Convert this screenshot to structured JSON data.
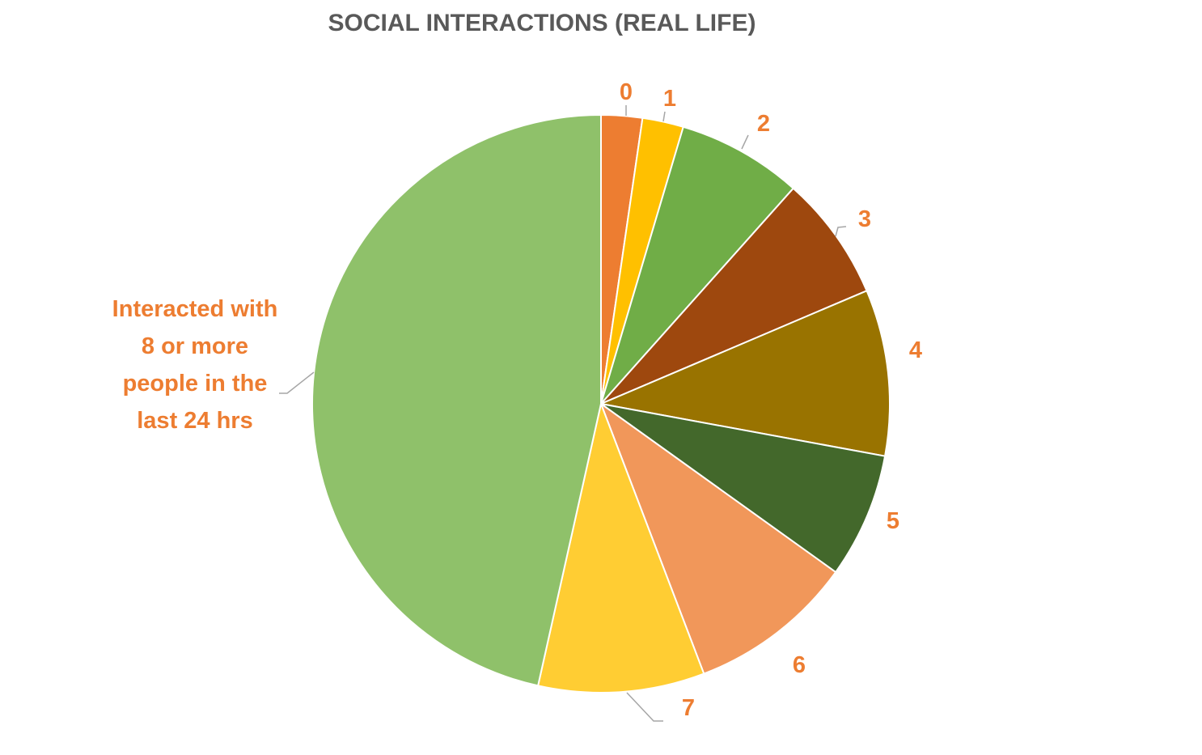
{
  "chart_data": {
    "type": "pie",
    "title": "SOCIAL INTERACTIONS (REAL LIFE)",
    "start_angle_deg": 0,
    "direction": "clockwise",
    "slices": [
      {
        "label": "0",
        "value": 2.3,
        "color": "#ED7D31"
      },
      {
        "label": "1",
        "value": 2.3,
        "color": "#FFC000"
      },
      {
        "label": "2",
        "value": 7.0,
        "color": "#70AD47"
      },
      {
        "label": "3",
        "value": 7.0,
        "color": "#9E480E"
      },
      {
        "label": "4",
        "value": 9.3,
        "color": "#997300"
      },
      {
        "label": "5",
        "value": 7.0,
        "color": "#43682B"
      },
      {
        "label": "6",
        "value": 9.3,
        "color": "#F1975A"
      },
      {
        "label": "7",
        "value": 9.3,
        "color": "#FFCD33"
      },
      {
        "label": "Interacted with 8 or more people in the last 24 hrs",
        "value": 46.5,
        "color": "#8FC16A",
        "label_lines": [
          "Interacted with",
          "8 or more",
          "people in the",
          "last 24 hrs"
        ]
      }
    ]
  }
}
